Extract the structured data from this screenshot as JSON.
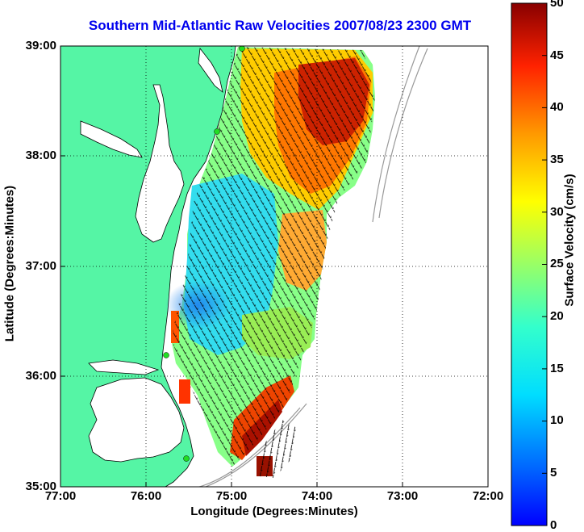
{
  "title": "Southern Mid-Atlantic Raw Velocities 2007/08/23 2300 GMT",
  "xaxis": {
    "label": "Longitude (Degrees:Minutes)",
    "ticks": [
      "77:00",
      "76:00",
      "75:00",
      "74:00",
      "73:00",
      "72:00"
    ]
  },
  "yaxis": {
    "label": "Latitude (Degrees:Minutes)",
    "ticks": [
      "39:00",
      "38:00",
      "37:00",
      "36:00",
      "35:00"
    ]
  },
  "colorbar": {
    "label": "Surface Velocity (cm/s)",
    "ticks": [
      "50",
      "45",
      "40",
      "35",
      "30",
      "25",
      "20",
      "15",
      "10",
      "5",
      "0"
    ],
    "min": 0,
    "max": 50,
    "colormap": "jet"
  },
  "colors": {
    "title": "#0000ee",
    "land": "#55f5a5",
    "background": "#ffffff",
    "vectors": "#000000",
    "stations": "#22dd22"
  }
}
